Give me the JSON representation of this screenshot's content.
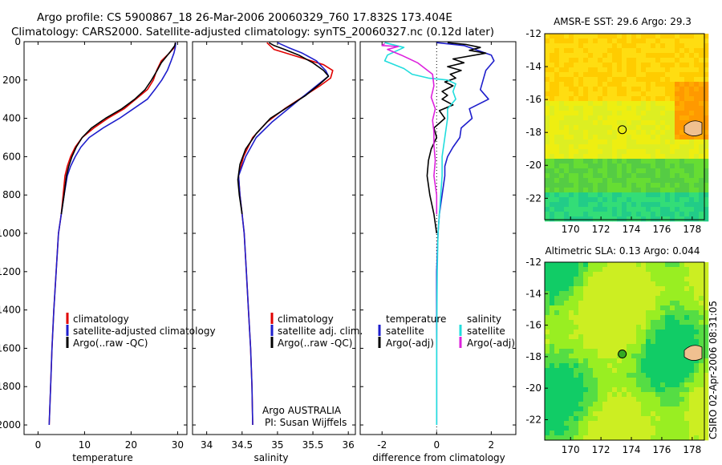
{
  "title_line1": "Argo profile: CS 5900867_18 26-Mar-2006 20060329_760 17.832S 173.404E",
  "title_line2": "Climatology: CARS2000. Satellite-adjusted climatology: synTS_20060327.nc (0.12d later)",
  "footer_right": "CSIRO 02-Apr-2006 08:31:05",
  "colors": {
    "climatology": "#e00000",
    "satellite": "#1e1ecc",
    "argo": "#000000",
    "sal_satellite": "#22dddd",
    "sal_argo": "#dd22dd"
  },
  "chart_data": [
    {
      "type": "line",
      "id": "temperature",
      "xlabel": "temperature",
      "ylabel": "",
      "xlim": [
        -3,
        32
      ],
      "ylim": [
        2050,
        0
      ],
      "xticks": [
        0,
        10,
        20,
        30
      ],
      "yticks": [
        0,
        200,
        400,
        600,
        800,
        1000,
        1200,
        1400,
        1600,
        1800,
        2000
      ],
      "series": [
        {
          "name": "climatology",
          "color": "#e00000",
          "points": [
            [
              29.6,
              5
            ],
            [
              29.3,
              30
            ],
            [
              28.2,
              60
            ],
            [
              26.5,
              100
            ],
            [
              25.5,
              150
            ],
            [
              24.8,
              200
            ],
            [
              23.5,
              250
            ],
            [
              21,
              300
            ],
            [
              18.5,
              350
            ],
            [
              15,
              400
            ],
            [
              12,
              450
            ],
            [
              9.5,
              500
            ],
            [
              8,
              550
            ],
            [
              7,
              600
            ],
            [
              6.3,
              650
            ],
            [
              5.8,
              700
            ],
            [
              5.4,
              800
            ],
            [
              5.0,
              900
            ],
            [
              4.4,
              1000
            ],
            [
              3.9,
              1200
            ],
            [
              3.4,
              1400
            ],
            [
              3.0,
              1600
            ],
            [
              2.7,
              1800
            ],
            [
              2.4,
              2000
            ]
          ]
        },
        {
          "name": "satellite-adjusted climatology",
          "color": "#1e1ecc",
          "points": [
            [
              29.6,
              5
            ],
            [
              29.5,
              30
            ],
            [
              29.2,
              60
            ],
            [
              28.6,
              100
            ],
            [
              27.8,
              150
            ],
            [
              26.6,
              200
            ],
            [
              25.1,
              250
            ],
            [
              23.5,
              300
            ],
            [
              20.5,
              350
            ],
            [
              17.5,
              400
            ],
            [
              14,
              450
            ],
            [
              11,
              500
            ],
            [
              9.2,
              550
            ],
            [
              8,
              600
            ],
            [
              7,
              650
            ],
            [
              6.3,
              700
            ],
            [
              5.6,
              800
            ],
            [
              5.0,
              900
            ],
            [
              4.4,
              1000
            ],
            [
              3.9,
              1200
            ],
            [
              3.4,
              1400
            ],
            [
              3.0,
              1600
            ],
            [
              2.7,
              1800
            ],
            [
              2.4,
              2000
            ]
          ]
        },
        {
          "name": "Argo(..raw -QC)",
          "color": "#000000",
          "points": [
            [
              29.5,
              5
            ],
            [
              29.4,
              20
            ],
            [
              28.5,
              50
            ],
            [
              27.5,
              80
            ],
            [
              26.5,
              110
            ],
            [
              25.6,
              150
            ],
            [
              24.4,
              200
            ],
            [
              23,
              250
            ],
            [
              20.8,
              300
            ],
            [
              18,
              350
            ],
            [
              14.5,
              400
            ],
            [
              11.5,
              450
            ],
            [
              9.5,
              500
            ],
            [
              8.2,
              550
            ],
            [
              7.3,
              600
            ],
            [
              6.6,
              650
            ],
            [
              6.1,
              700
            ],
            [
              5.6,
              800
            ],
            [
              5.0,
              900
            ]
          ]
        }
      ],
      "legend": [
        "climatology",
        "satellite-adjusted climatology",
        "Argo(..raw -QC)"
      ]
    },
    {
      "type": "line",
      "id": "salinity",
      "xlabel": "salinity",
      "xlim": [
        33.8,
        36.1
      ],
      "ylim": [
        2050,
        0
      ],
      "xticks": [
        34,
        34.5,
        35,
        35.5,
        36
      ],
      "series": [
        {
          "name": "climatology",
          "color": "#e00000",
          "points": [
            [
              34.85,
              5
            ],
            [
              34.95,
              40
            ],
            [
              35.3,
              80
            ],
            [
              35.65,
              120
            ],
            [
              35.78,
              150
            ],
            [
              35.75,
              190
            ],
            [
              35.6,
              230
            ],
            [
              35.35,
              290
            ],
            [
              35.1,
              350
            ],
            [
              34.85,
              420
            ],
            [
              34.65,
              500
            ],
            [
              34.52,
              600
            ],
            [
              34.45,
              700
            ],
            [
              34.47,
              800
            ],
            [
              34.5,
              900
            ],
            [
              34.53,
              1000
            ],
            [
              34.56,
              1200
            ],
            [
              34.59,
              1400
            ],
            [
              34.62,
              1600
            ],
            [
              34.64,
              1800
            ],
            [
              34.65,
              2000
            ]
          ]
        },
        {
          "name": "satellite adj. clim.",
          "color": "#1e1ecc",
          "points": [
            [
              35.0,
              5
            ],
            [
              35.15,
              30
            ],
            [
              35.35,
              60
            ],
            [
              35.55,
              100
            ],
            [
              35.68,
              150
            ],
            [
              35.72,
              180
            ],
            [
              35.55,
              230
            ],
            [
              35.35,
              290
            ],
            [
              35.15,
              350
            ],
            [
              34.92,
              420
            ],
            [
              34.7,
              500
            ],
            [
              34.55,
              600
            ],
            [
              34.45,
              700
            ],
            [
              34.47,
              800
            ],
            [
              34.5,
              900
            ],
            [
              34.53,
              1000
            ],
            [
              34.56,
              1200
            ],
            [
              34.59,
              1400
            ],
            [
              34.62,
              1600
            ],
            [
              34.64,
              1800
            ],
            [
              34.65,
              2000
            ]
          ]
        },
        {
          "name": "Argo(..raw -QC)",
          "color": "#000000",
          "points": [
            [
              34.88,
              5
            ],
            [
              34.95,
              20
            ],
            [
              35.1,
              40
            ],
            [
              35.3,
              70
            ],
            [
              35.5,
              110
            ],
            [
              35.65,
              150
            ],
            [
              35.72,
              180
            ],
            [
              35.6,
              220
            ],
            [
              35.4,
              280
            ],
            [
              35.15,
              340
            ],
            [
              34.9,
              400
            ],
            [
              34.7,
              480
            ],
            [
              34.55,
              560
            ],
            [
              34.47,
              640
            ],
            [
              34.44,
              720
            ],
            [
              34.46,
              800
            ],
            [
              34.5,
              900
            ]
          ]
        }
      ],
      "legend": [
        "climatology",
        "satellite adj. clim.",
        "Argo(..raw -QC)"
      ],
      "annotation_line1": "Argo AUSTRALIA",
      "annotation_line2": "PI: Susan Wijffels"
    },
    {
      "type": "line",
      "id": "difference",
      "xlabel": "difference from climatology",
      "xlim": [
        -2.8,
        2.9
      ],
      "ylim": [
        2050,
        0
      ],
      "xticks": [
        -2,
        0,
        2
      ],
      "series": [
        {
          "name": "temperature satellite",
          "color": "#1e1ecc",
          "points": [
            [
              0.0,
              5
            ],
            [
              1.0,
              20
            ],
            [
              2.0,
              70
            ],
            [
              2.1,
              100
            ],
            [
              1.8,
              150
            ],
            [
              1.7,
              200
            ],
            [
              1.6,
              250
            ],
            [
              1.9,
              300
            ],
            [
              1.2,
              350
            ],
            [
              1.3,
              400
            ],
            [
              0.9,
              450
            ],
            [
              0.85,
              500
            ],
            [
              0.6,
              550
            ],
            [
              0.4,
              600
            ],
            [
              0.3,
              650
            ],
            [
              0.3,
              700
            ],
            [
              0.2,
              800
            ],
            [
              0.1,
              900
            ],
            [
              0.05,
              1000
            ],
            [
              0,
              1200
            ],
            [
              0,
              1600
            ],
            [
              0,
              2000
            ]
          ]
        },
        {
          "name": "temperature Argo(-adj)",
          "color": "#000000",
          "points": [
            [
              0.4,
              5
            ],
            [
              1.1,
              15
            ],
            [
              1.6,
              30
            ],
            [
              1.2,
              45
            ],
            [
              1.8,
              60
            ],
            [
              0.6,
              90
            ],
            [
              1.0,
              110
            ],
            [
              0.4,
              130
            ],
            [
              0.9,
              150
            ],
            [
              0.5,
              170
            ],
            [
              0.7,
              190
            ],
            [
              0.3,
              210
            ],
            [
              0.6,
              230
            ],
            [
              0.2,
              260
            ],
            [
              0.4,
              280
            ],
            [
              0.2,
              300
            ],
            [
              0.6,
              330
            ],
            [
              0.1,
              360
            ],
            [
              0.3,
              400
            ],
            [
              -0.1,
              450
            ],
            [
              0.0,
              500
            ],
            [
              -0.2,
              560
            ],
            [
              -0.3,
              620
            ],
            [
              -0.35,
              700
            ],
            [
              -0.25,
              800
            ],
            [
              -0.1,
              900
            ],
            [
              0.0,
              1000
            ]
          ]
        },
        {
          "name": "salinity satellite",
          "color": "#22dddd",
          "points": [
            [
              -1.9,
              5
            ],
            [
              -1.2,
              30
            ],
            [
              -1.8,
              70
            ],
            [
              -1.9,
              100
            ],
            [
              -1.2,
              140
            ],
            [
              -0.9,
              170
            ],
            [
              -0.3,
              190
            ],
            [
              0.4,
              200
            ],
            [
              0.7,
              220
            ],
            [
              0.6,
              260
            ],
            [
              0.7,
              300
            ],
            [
              0.4,
              350
            ],
            [
              0.4,
              400
            ],
            [
              0.3,
              500
            ],
            [
              0.2,
              600
            ],
            [
              0.2,
              700
            ],
            [
              0.15,
              800
            ],
            [
              0.1,
              900
            ],
            [
              0.05,
              1000
            ],
            [
              0.02,
              1200
            ],
            [
              0,
              1600
            ],
            [
              0,
              2000
            ]
          ]
        },
        {
          "name": "salinity Argo(-adj)",
          "color": "#dd22dd",
          "points": [
            [
              -1.9,
              10
            ],
            [
              -2.0,
              20
            ],
            [
              -1.4,
              25
            ],
            [
              -1.8,
              40
            ],
            [
              -1.3,
              70
            ],
            [
              -0.7,
              110
            ],
            [
              -0.15,
              170
            ],
            [
              -0.1,
              230
            ],
            [
              -0.2,
              290
            ],
            [
              -0.05,
              350
            ],
            [
              -0.15,
              410
            ],
            [
              -0.1,
              470
            ],
            [
              -0.1,
              540
            ],
            [
              -0.05,
              620
            ],
            [
              -0.1,
              700
            ],
            [
              0.0,
              800
            ],
            [
              0.0,
              900
            ]
          ]
        }
      ],
      "legend_col1_header": "temperature",
      "legend_col2_header": "salinity",
      "legend_col1": [
        "satellite",
        "Argo(-adj)"
      ],
      "legend_col2": [
        "satellite",
        "Argo(-adj)"
      ]
    },
    {
      "type": "heatmap",
      "id": "sst-map",
      "title": "AMSR-E SST: 29.6  Argo: 29.3",
      "xticks": [
        170,
        172,
        174,
        176,
        178
      ],
      "yticks": [
        -12,
        -14,
        -16,
        -18,
        -20,
        -22
      ],
      "xlim": [
        168.3,
        178.8
      ],
      "ylim": [
        -23.3,
        -12
      ],
      "float_position": [
        173.4,
        -17.83
      ]
    },
    {
      "type": "heatmap",
      "id": "sla-map",
      "title": "Altimetric SLA: 0.13  Argo: 0.044",
      "xticks": [
        170,
        172,
        174,
        176,
        178
      ],
      "yticks": [
        -12,
        -14,
        -16,
        -18,
        -20,
        -22
      ],
      "xlim": [
        168.3,
        178.8
      ],
      "ylim": [
        -23.3,
        -12
      ],
      "float_position": [
        173.4,
        -17.83
      ]
    }
  ]
}
